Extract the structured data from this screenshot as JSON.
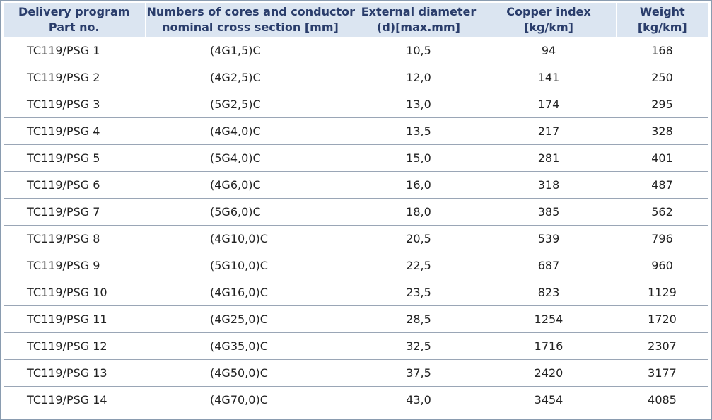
{
  "header": {
    "part": [
      "Delivery program",
      "Part no."
    ],
    "cores": [
      "Numbers of cores and conductor",
      "nominal cross section [mm]"
    ],
    "diameter": [
      "External diameter",
      "(d)[max.mm]"
    ],
    "copper": [
      "Copper index",
      "[kg/km]"
    ],
    "weight": [
      "Weight",
      "[kg/km]"
    ]
  },
  "rows": [
    {
      "part": "TC119/PSG 1",
      "cores": "(4G1,5)C",
      "diameter": "10,5",
      "copper": "94",
      "weight": "168"
    },
    {
      "part": "TC119/PSG 2",
      "cores": "(4G2,5)C",
      "diameter": "12,0",
      "copper": "141",
      "weight": "250"
    },
    {
      "part": "TC119/PSG 3",
      "cores": "(5G2,5)C",
      "diameter": "13,0",
      "copper": "174",
      "weight": "295"
    },
    {
      "part": "TC119/PSG 4",
      "cores": "(4G4,0)C",
      "diameter": "13,5",
      "copper": "217",
      "weight": "328"
    },
    {
      "part": "TC119/PSG 5",
      "cores": "(5G4,0)C",
      "diameter": "15,0",
      "copper": "281",
      "weight": "401"
    },
    {
      "part": "TC119/PSG 6",
      "cores": "(4G6,0)C",
      "diameter": "16,0",
      "copper": "318",
      "weight": "487"
    },
    {
      "part": "TC119/PSG 7",
      "cores": "(5G6,0)C",
      "diameter": "18,0",
      "copper": "385",
      "weight": "562"
    },
    {
      "part": "TC119/PSG 8",
      "cores": "(4G10,0)C",
      "diameter": "20,5",
      "copper": "539",
      "weight": "796"
    },
    {
      "part": "TC119/PSG 9",
      "cores": "(5G10,0)C",
      "diameter": "22,5",
      "copper": "687",
      "weight": "960"
    },
    {
      "part": "TC119/PSG 10",
      "cores": "(4G16,0)C",
      "diameter": "23,5",
      "copper": "823",
      "weight": "1129"
    },
    {
      "part": "TC119/PSG 11",
      "cores": "(4G25,0)C",
      "diameter": "28,5",
      "copper": "1254",
      "weight": "1720"
    },
    {
      "part": "TC119/PSG 12",
      "cores": "(4G35,0)C",
      "diameter": "32,5",
      "copper": "1716",
      "weight": "2307"
    },
    {
      "part": "TC119/PSG 13",
      "cores": "(4G50,0)C",
      "diameter": "37,5",
      "copper": "2420",
      "weight": "3177"
    },
    {
      "part": "TC119/PSG 14",
      "cores": "(4G70,0)C",
      "diameter": "43,0",
      "copper": "3454",
      "weight": "4085"
    }
  ]
}
